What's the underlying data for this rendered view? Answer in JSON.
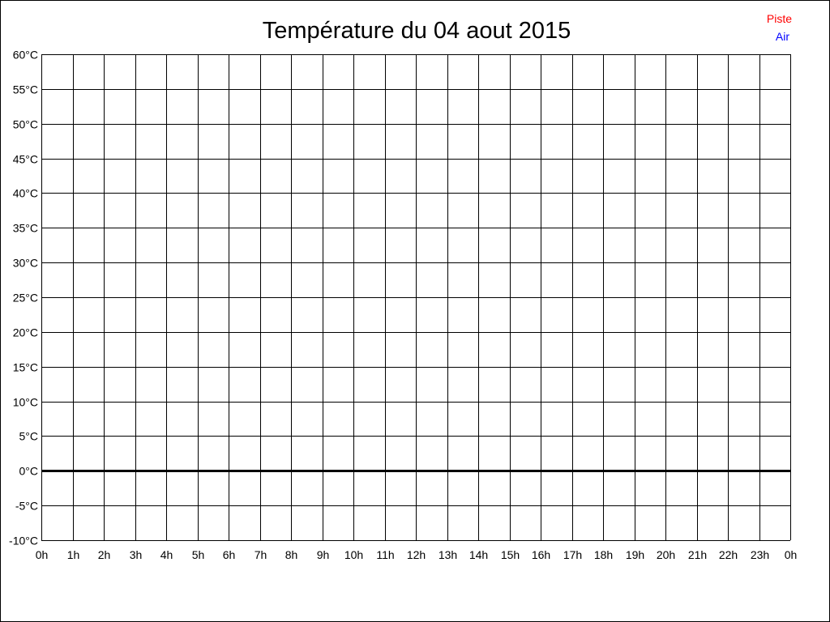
{
  "chart_data": {
    "type": "line",
    "title": "Température du 04 aout 2015",
    "xlabel": "",
    "ylabel": "",
    "x_ticks": [
      "0h",
      "1h",
      "2h",
      "3h",
      "4h",
      "5h",
      "6h",
      "7h",
      "8h",
      "9h",
      "10h",
      "11h",
      "12h",
      "13h",
      "14h",
      "15h",
      "16h",
      "17h",
      "18h",
      "19h",
      "20h",
      "21h",
      "22h",
      "23h",
      "0h"
    ],
    "y_ticks": [
      60,
      55,
      50,
      45,
      40,
      35,
      30,
      25,
      20,
      15,
      10,
      5,
      0,
      -5,
      -10
    ],
    "y_unit": "°C",
    "ylim": [
      -10,
      60
    ],
    "xlim": [
      0,
      24
    ],
    "grid": true,
    "legend_placement": "top-right",
    "series": [
      {
        "name": "Piste",
        "color": "#ff0000",
        "values": []
      },
      {
        "name": "Air",
        "color": "#0000ff",
        "values": []
      }
    ]
  }
}
